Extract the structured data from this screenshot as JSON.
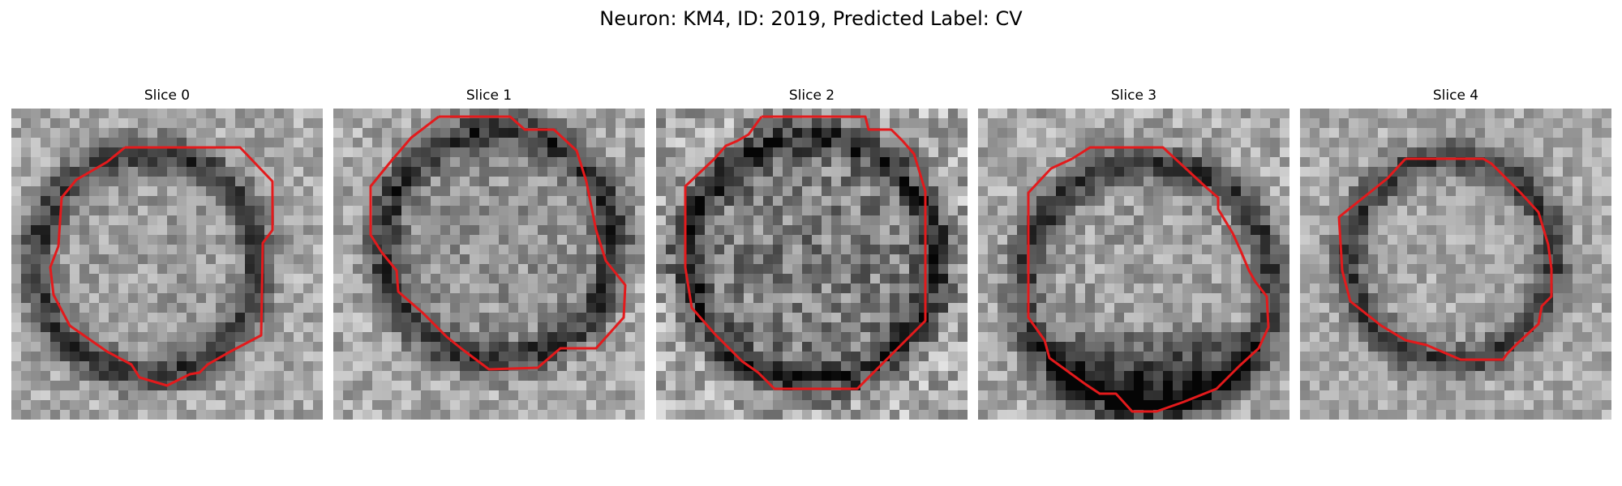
{
  "figure": {
    "title": "Neuron: KM4, ID: 2019, Predicted Label: CV"
  },
  "panels": [
    {
      "title": "Slice 0",
      "contour_color": "#e31a1c"
    },
    {
      "title": "Slice 1",
      "contour_color": "#e31a1c"
    },
    {
      "title": "Slice 2",
      "contour_color": "#e31a1c"
    },
    {
      "title": "Slice 3",
      "contour_color": "#e31a1c"
    },
    {
      "title": "Slice 4",
      "contour_color": "#e31a1c"
    }
  ]
}
